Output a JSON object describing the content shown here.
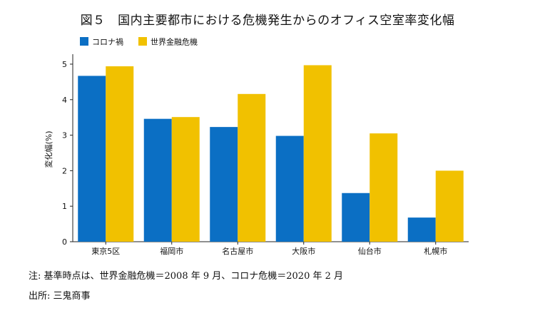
{
  "chart_data": {
    "type": "bar",
    "title": "図５　国内主要都市における危機発生からのオフィス空室率変化幅",
    "xlabel": "",
    "ylabel": "変化幅(%)",
    "ylim": [
      0,
      5.2
    ],
    "yticks": [
      "0",
      "1",
      "2",
      "3",
      "4",
      "5"
    ],
    "grid": false,
    "legend_position": "top-left",
    "categories": [
      "東京5区",
      "福岡市",
      "名古屋市",
      "大阪市",
      "仙台市",
      "札幌市"
    ],
    "series": [
      {
        "name": "コロナ禍",
        "color": "#0b6fc4",
        "values": [
          4.67,
          3.46,
          3.23,
          2.98,
          1.37,
          0.68
        ]
      },
      {
        "name": "世界金融危機",
        "color": "#f1c100",
        "values": [
          4.94,
          3.51,
          4.16,
          4.97,
          3.05,
          2.0
        ]
      }
    ]
  },
  "notes": {
    "line1": "注:  基準時点は、世界金融危機＝2008 年 9 月、コロナ危機＝2020 年 2 月",
    "line2": "出所:  三鬼商事"
  }
}
